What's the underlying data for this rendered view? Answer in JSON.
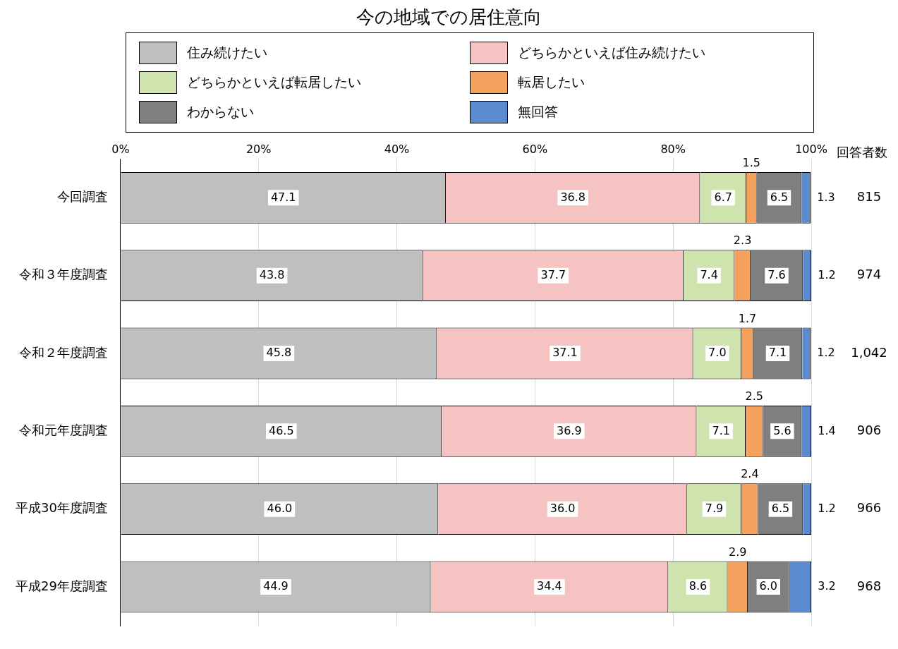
{
  "chart_data": {
    "type": "bar",
    "orientation": "horizontal",
    "stacked": true,
    "title": "今の地域での居住意向",
    "categories": [
      "今回調査",
      "令和３年度調査",
      "令和２年度調査",
      "令和元年度調査",
      "平成30年度調査",
      "平成29年度調査"
    ],
    "series": [
      {
        "name": "住み続けたい",
        "color": "#bfbfbf",
        "values": [
          47.1,
          43.8,
          45.8,
          46.5,
          46.0,
          44.9
        ],
        "value_labels": [
          "47.1",
          "43.8",
          "45.8",
          "46.5",
          "46.0",
          "44.9"
        ]
      },
      {
        "name": "どちらかといえば住み続けたい",
        "color": "#f6c3c3",
        "values": [
          36.8,
          37.7,
          37.1,
          36.9,
          36.0,
          34.4
        ],
        "value_labels": [
          "36.8",
          "37.7",
          "37.1",
          "36.9",
          "36.0",
          "34.4"
        ]
      },
      {
        "name": "どちらかといえば転居したい",
        "color": "#cfe3ae",
        "values": [
          6.7,
          7.4,
          7.0,
          7.1,
          7.9,
          8.6
        ],
        "value_labels": [
          "6.7",
          "7.4",
          "7.0",
          "7.1",
          "7.9",
          "8.6"
        ]
      },
      {
        "name": "転居したい",
        "color": "#f4a15d",
        "values": [
          1.5,
          2.3,
          1.7,
          2.5,
          2.4,
          2.9
        ],
        "value_labels": [
          "1.5",
          "2.3",
          "1.7",
          "2.5",
          "2.4",
          "2.9"
        ]
      },
      {
        "name": "わからない",
        "color": "#7f7f7f",
        "values": [
          6.5,
          7.6,
          7.1,
          5.6,
          6.5,
          6.0
        ],
        "value_labels": [
          "6.5",
          "7.6",
          "7.1",
          "5.6",
          "6.5",
          "6.0"
        ]
      },
      {
        "name": "無回答",
        "color": "#5b8bd0",
        "values": [
          1.3,
          1.2,
          1.2,
          1.4,
          1.2,
          3.2
        ],
        "value_labels": [
          "1.3",
          "1.2",
          "1.2",
          "1.4",
          "1.2",
          "3.2"
        ]
      }
    ],
    "xlim": [
      0,
      100
    ],
    "xticks": [
      {
        "value": 0,
        "label": "0%"
      },
      {
        "value": 20,
        "label": "20%"
      },
      {
        "value": 40,
        "label": "40%"
      },
      {
        "value": 60,
        "label": "60%"
      },
      {
        "value": 80,
        "label": "80%"
      },
      {
        "value": 100,
        "label": "100%"
      }
    ],
    "grid": "x",
    "legend": "top",
    "annotations": [
      "回答者数",
      "815",
      "974",
      "1,042",
      "906",
      "966",
      "968"
    ]
  }
}
